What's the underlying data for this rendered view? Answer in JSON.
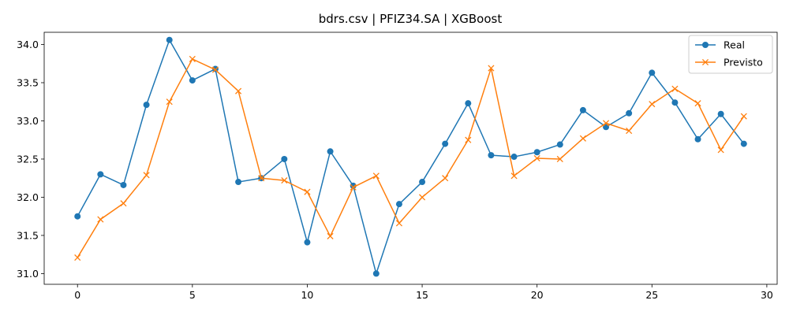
{
  "chart_data": {
    "type": "line",
    "title": "bdrs.csv | PFIZ34.SA | XGBoost",
    "xlabel": "",
    "ylabel": "",
    "xlim": [
      -1.45,
      30.45
    ],
    "ylim": [
      30.86,
      34.16
    ],
    "xticks": [
      0,
      5,
      10,
      15,
      20,
      25,
      30
    ],
    "yticks": [
      31.0,
      31.5,
      32.0,
      32.5,
      33.0,
      33.5,
      34.0
    ],
    "ytick_labels": [
      "31.0",
      "31.5",
      "32.0",
      "32.5",
      "33.0",
      "33.5",
      "34.0"
    ],
    "legend_position": "top-right",
    "grid": false,
    "x": [
      0,
      1,
      2,
      3,
      4,
      5,
      6,
      7,
      8,
      9,
      10,
      11,
      12,
      13,
      14,
      15,
      16,
      17,
      18,
      19,
      20,
      21,
      22,
      23,
      24,
      25,
      26,
      27,
      28,
      29
    ],
    "series": [
      {
        "name": "Real",
        "color": "#1f77b4",
        "marker": "circle",
        "values": [
          31.75,
          32.3,
          32.16,
          33.21,
          34.06,
          33.53,
          33.68,
          32.2,
          32.25,
          32.5,
          31.41,
          32.6,
          32.15,
          31.0,
          31.91,
          32.2,
          32.7,
          33.23,
          32.55,
          32.53,
          32.59,
          32.69,
          33.14,
          32.92,
          33.1,
          33.63,
          33.24,
          32.76,
          33.09,
          32.7
        ]
      },
      {
        "name": "Previsto",
        "color": "#ff7f0e",
        "marker": "x",
        "values": [
          31.21,
          31.71,
          31.92,
          32.29,
          33.25,
          33.81,
          33.67,
          33.39,
          32.25,
          32.22,
          32.07,
          31.49,
          32.13,
          32.28,
          31.66,
          32.0,
          32.25,
          32.75,
          33.69,
          32.28,
          32.51,
          32.5,
          32.77,
          32.97,
          32.87,
          33.22,
          33.42,
          33.23,
          32.62,
          33.06
        ]
      }
    ]
  }
}
